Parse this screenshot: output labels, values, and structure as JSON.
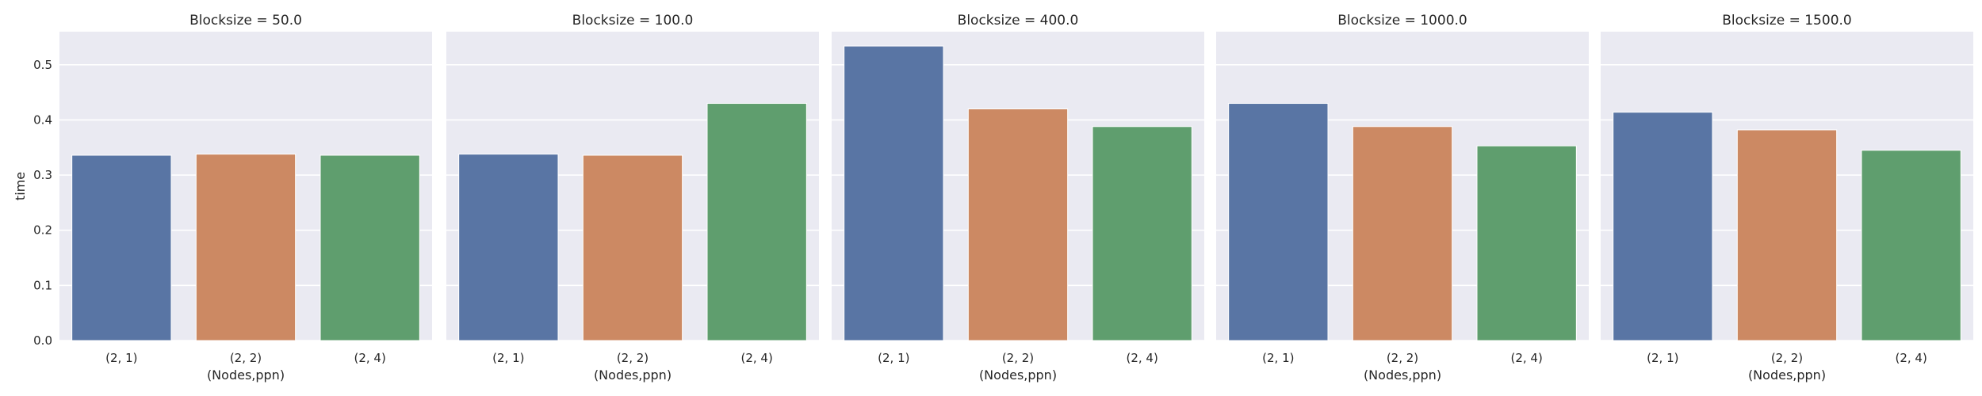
{
  "figure": {
    "background": "#ffffff",
    "panel_background": "#eaeaf2",
    "grid_color": "#ffffff",
    "text_color": "#262626"
  },
  "chart_data": [
    {
      "type": "bar",
      "title": "Blocksize = 50.0",
      "xlabel": "(Nodes,ppn)",
      "ylabel": "time",
      "categories": [
        "(2, 1)",
        "(2, 2)",
        "(2, 4)"
      ],
      "values": [
        0.336,
        0.338,
        0.336
      ],
      "colors": [
        "#5975a4",
        "#cc8963",
        "#5f9e6e"
      ],
      "ylim": [
        0,
        0.56
      ],
      "yticks": [
        0.0,
        0.1,
        0.2,
        0.3,
        0.4,
        0.5
      ],
      "ytick_labels": [
        "0.0",
        "0.1",
        "0.2",
        "0.3",
        "0.4",
        "0.5"
      ],
      "grid": true
    },
    {
      "type": "bar",
      "title": "Blocksize = 100.0",
      "xlabel": "(Nodes,ppn)",
      "ylabel": "",
      "categories": [
        "(2, 1)",
        "(2, 2)",
        "(2, 4)"
      ],
      "values": [
        0.338,
        0.336,
        0.43
      ],
      "colors": [
        "#5975a4",
        "#cc8963",
        "#5f9e6e"
      ],
      "ylim": [
        0,
        0.56
      ],
      "yticks": [
        0.0,
        0.1,
        0.2,
        0.3,
        0.4,
        0.5
      ],
      "ytick_labels": [],
      "grid": true
    },
    {
      "type": "bar",
      "title": "Blocksize = 400.0",
      "xlabel": "(Nodes,ppn)",
      "ylabel": "",
      "categories": [
        "(2, 1)",
        "(2, 2)",
        "(2, 4)"
      ],
      "values": [
        0.534,
        0.42,
        0.388
      ],
      "colors": [
        "#5975a4",
        "#cc8963",
        "#5f9e6e"
      ],
      "ylim": [
        0,
        0.56
      ],
      "yticks": [
        0.0,
        0.1,
        0.2,
        0.3,
        0.4,
        0.5
      ],
      "ytick_labels": [],
      "grid": true
    },
    {
      "type": "bar",
      "title": "Blocksize = 1000.0",
      "xlabel": "(Nodes,ppn)",
      "ylabel": "",
      "categories": [
        "(2, 1)",
        "(2, 2)",
        "(2, 4)"
      ],
      "values": [
        0.43,
        0.388,
        0.353
      ],
      "colors": [
        "#5975a4",
        "#cc8963",
        "#5f9e6e"
      ],
      "ylim": [
        0,
        0.56
      ],
      "yticks": [
        0.0,
        0.1,
        0.2,
        0.3,
        0.4,
        0.5
      ],
      "ytick_labels": [],
      "grid": true
    },
    {
      "type": "bar",
      "title": "Blocksize = 1500.0",
      "xlabel": "(Nodes,ppn)",
      "ylabel": "",
      "categories": [
        "(2, 1)",
        "(2, 2)",
        "(2, 4)"
      ],
      "values": [
        0.414,
        0.382,
        0.345
      ],
      "colors": [
        "#5975a4",
        "#cc8963",
        "#5f9e6e"
      ],
      "ylim": [
        0,
        0.56
      ],
      "yticks": [
        0.0,
        0.1,
        0.2,
        0.3,
        0.4,
        0.5
      ],
      "ytick_labels": [],
      "grid": true
    }
  ]
}
